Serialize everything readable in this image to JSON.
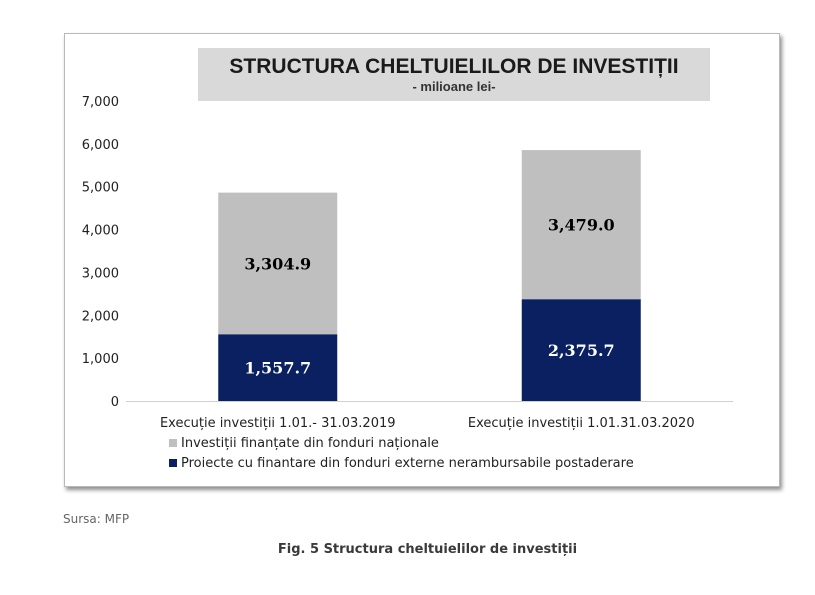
{
  "chart_data": {
    "type": "bar",
    "stacked": true,
    "title": "STRUCTURA CHELTUIELILOR DE INVESTIȚII",
    "subtitle": "- milioane lei-",
    "categories": [
      "Execuție investiții 1.01.- 31.03.2019",
      "Execuție investiții 1.01.31.03.2020"
    ],
    "series": [
      {
        "name": "Proiecte cu finantare din fonduri externe nerambursabile postaderare",
        "values": [
          1557.7,
          2375.7
        ],
        "labels": [
          "1,557.7",
          "2,375.7"
        ],
        "color": "#0a2060",
        "label_color": "#ffffff"
      },
      {
        "name": "Investiții finanțate din fonduri naționale",
        "values": [
          3304.9,
          3479.0
        ],
        "labels": [
          "3,304.9",
          "3,479.0"
        ],
        "color": "#bfbfbf",
        "label_color": "#000000"
      }
    ],
    "ylim": [
      0,
      7000
    ],
    "yticks": [
      0,
      1000,
      2000,
      3000,
      4000,
      5000,
      6000,
      7000
    ],
    "ytick_labels": [
      "0",
      "1,000",
      "2,000",
      "3,000",
      "4,000",
      "5,000",
      "6,000",
      "7,000"
    ],
    "grid": false,
    "legend_position": "bottom-left"
  },
  "source": "Sursa: MFP",
  "caption": "Fig. 5 Structura cheltuielilor de investiții"
}
